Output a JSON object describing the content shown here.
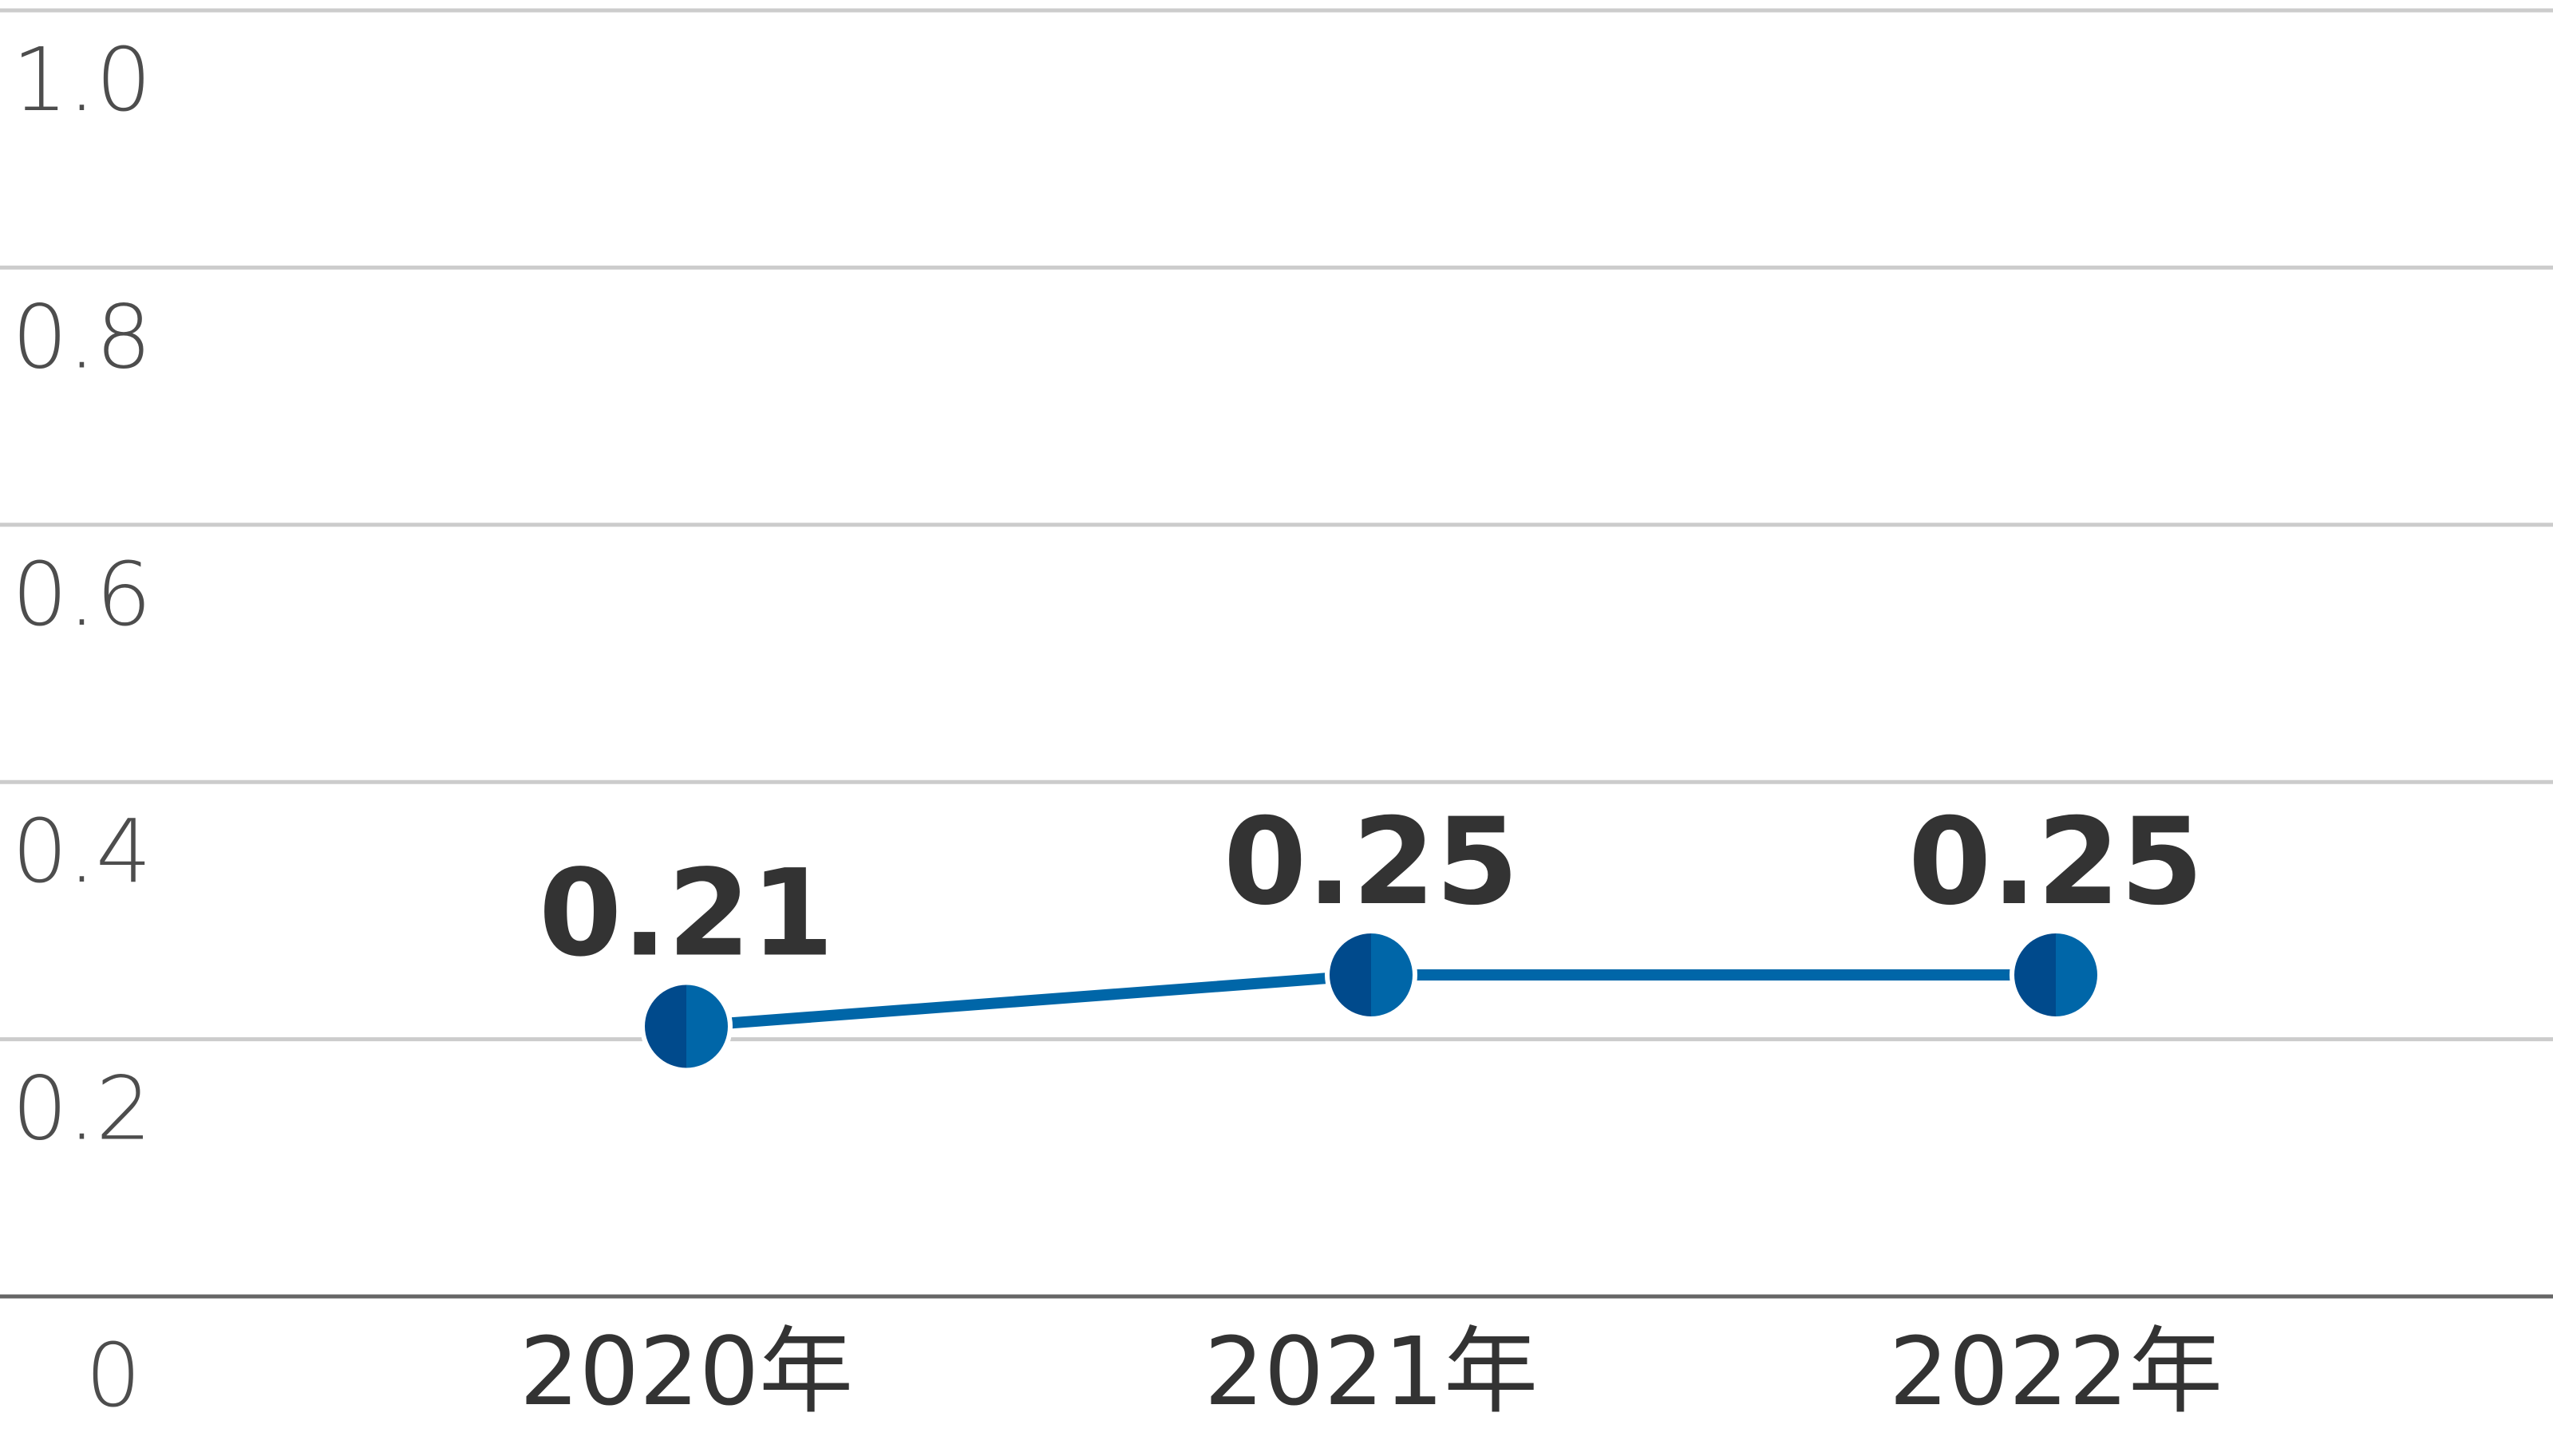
{
  "chart_data": {
    "type": "line",
    "categories": [
      "2020年",
      "2021年",
      "2022年"
    ],
    "series": [
      {
        "values": [
          0.21,
          0.25,
          0.25
        ]
      }
    ],
    "data_labels": [
      "0.21",
      "0.25",
      "0.25"
    ],
    "y_ticks": [
      "0",
      "0.2",
      "0.4",
      "0.6",
      "0.8",
      "1.0"
    ],
    "ylim": [
      0,
      1.0
    ],
    "grid": true,
    "legend": "none",
    "colors": {
      "line": "#0066a8",
      "marker_dark": "#004a8c",
      "marker_light": "#0066a8",
      "grid": "#cccccc",
      "axis": "#666666",
      "tick_text": "#4d4d4d",
      "label_text": "#333333"
    }
  }
}
